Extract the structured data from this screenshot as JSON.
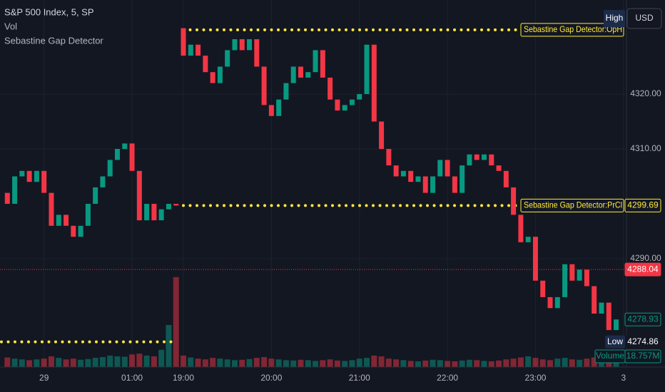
{
  "chart_data": {
    "type": "candlestick",
    "title": "S&P 500 Index, 5, SP",
    "indicators": [
      "Vol",
      "Sebastine Gap Detector"
    ],
    "currency": "USD",
    "categories": [
      null,
      null,
      null,
      null,
      null,
      "29",
      null,
      null,
      null,
      null,
      null,
      null,
      null,
      null,
      null,
      null,
      null,
      "01:00",
      null,
      null,
      null,
      null,
      null,
      null,
      "19:00",
      null,
      null,
      null,
      null,
      null,
      null,
      null,
      null,
      null,
      null,
      null,
      "20:00",
      null,
      null,
      null,
      null,
      null,
      null,
      null,
      null,
      null,
      null,
      null,
      "21:00",
      null,
      null,
      null,
      null,
      null,
      null,
      null,
      null,
      null,
      null,
      null,
      "22:00",
      null,
      null,
      null,
      null,
      null,
      null,
      null,
      null,
      null,
      null,
      null,
      "23:00",
      null,
      null,
      null,
      null,
      null,
      null,
      null,
      null,
      null,
      null,
      null,
      "3"
    ],
    "open": [
      4302,
      4300,
      4305,
      4306,
      4304,
      4306,
      4302,
      4296,
      4298,
      4296,
      4294,
      4296,
      4300,
      4303,
      4305,
      4308,
      4310,
      4311,
      4306,
      4297,
      4300,
      4297,
      4299,
      4300,
      4332,
      4327,
      4329,
      4327,
      4324,
      4322,
      4325,
      4328,
      4330,
      4328,
      4330,
      4325,
      4318,
      4316,
      4319,
      4322,
      4325,
      4323,
      4324,
      4328,
      4323,
      4319,
      4317,
      4318,
      4319,
      4320,
      4329,
      4315,
      4310,
      4307,
      4305,
      4306,
      4304,
      4305,
      4302,
      4305,
      4308,
      4305,
      4302,
      4307,
      4309,
      4308,
      4309,
      4307,
      4306,
      4303,
      4298,
      4293,
      4294,
      4286,
      4283,
      4281,
      4283,
      4289,
      4286,
      4288,
      4285,
      4280,
      4282,
      4277,
      null
    ],
    "high": {
      "label": "High"
    },
    "low": {
      "label": "Low",
      "value": 4274.86,
      "color": "#ffeb3b"
    },
    "close": [
      4300,
      4305,
      4306,
      4304,
      4306,
      4302,
      4296,
      4298,
      4296,
      4294,
      4296,
      4300,
      4303,
      4305,
      4308,
      4310,
      4311,
      4306,
      4297,
      4300,
      4297,
      4299,
      4300,
      4299.69,
      4327,
      4329,
      4327,
      4324,
      4322,
      4325,
      4328,
      4330,
      4328,
      4330,
      4325,
      4318,
      4316,
      4319,
      4322,
      4325,
      4323,
      4324,
      4328,
      4323,
      4319,
      4317,
      4318,
      4319,
      4320,
      4329,
      4315,
      4310,
      4307,
      4305,
      4306,
      4304,
      4305,
      4302,
      4305,
      4308,
      4305,
      4302,
      4307,
      4309,
      4308,
      4309,
      4307,
      4306,
      4303,
      4298,
      4293,
      4294,
      4286,
      4283,
      4281,
      4283,
      4289,
      4286,
      4288,
      4285,
      4280,
      4282,
      4277,
      4278.93,
      null
    ],
    "up_color": "#089981",
    "down_color": "#f23645",
    "ylim": [
      4270.26,
      4337.14
    ],
    "yticks": [
      {
        "value": 4290,
        "label": "4290.00"
      },
      {
        "value": 4310,
        "label": "4310.00"
      },
      {
        "value": 4320,
        "label": "4320.00"
      }
    ],
    "grid": true,
    "volume": {
      "name": "Volume",
      "axis": "y2",
      "values": [
        25000000,
        22000000,
        20000000,
        18000000,
        20000000,
        22000000,
        28000000,
        24000000,
        20000000,
        22000000,
        19000000,
        21000000,
        24000000,
        26000000,
        30000000,
        28000000,
        27000000,
        33000000,
        35000000,
        30000000,
        28000000,
        45000000,
        110000000,
        235000000,
        30000000,
        25000000,
        22000000,
        20000000,
        24000000,
        22000000,
        20000000,
        18000000,
        19000000,
        21000000,
        24000000,
        26000000,
        22000000,
        20000000,
        18000000,
        17000000,
        19000000,
        18000000,
        16000000,
        18000000,
        20000000,
        17000000,
        16000000,
        18000000,
        22000000,
        24000000,
        30000000,
        28000000,
        22000000,
        20000000,
        18000000,
        16000000,
        15000000,
        17000000,
        19000000,
        18000000,
        16000000,
        15000000,
        17000000,
        19000000,
        18000000,
        16000000,
        15000000,
        17000000,
        20000000,
        22000000,
        25000000,
        28000000,
        24000000,
        20000000,
        18000000,
        22000000,
        24000000,
        20000000,
        19000000,
        22000000,
        25000000,
        21000000,
        20000000,
        18757000,
        null
      ],
      "value_labels": [
        null,
        null,
        null,
        null,
        null,
        null,
        null,
        null,
        null,
        null,
        null,
        null,
        null,
        null,
        null,
        null,
        null,
        null,
        null,
        null,
        null,
        null,
        null,
        null,
        null,
        null,
        null,
        null,
        null,
        null,
        null,
        null,
        null,
        null,
        null,
        null,
        null,
        null,
        null,
        null,
        null,
        null,
        null,
        null,
        null,
        null,
        null,
        null,
        null,
        null,
        null,
        null,
        null,
        null,
        null,
        null,
        null,
        null,
        null,
        null,
        null,
        null,
        null,
        null,
        null,
        null,
        null,
        null,
        null,
        null,
        null,
        null,
        null,
        null,
        null,
        null,
        null,
        null,
        null,
        null,
        null,
        null,
        null,
        "18.757M",
        null
      ]
    },
    "y2lim": [
      0,
      270000000
    ],
    "levels": [
      {
        "label": "Sebastine Gap Detector:OpH",
        "value": 4331.7,
        "color": "#ffeb3b"
      },
      {
        "label": "Sebastine Gap Detector:PrCl",
        "value": 4299.69,
        "color": "#ffeb3b"
      }
    ],
    "price_lines": [
      {
        "value": 4288.04,
        "color": "#f23645"
      },
      {
        "value": 4278.93,
        "color": "#089981"
      }
    ]
  }
}
